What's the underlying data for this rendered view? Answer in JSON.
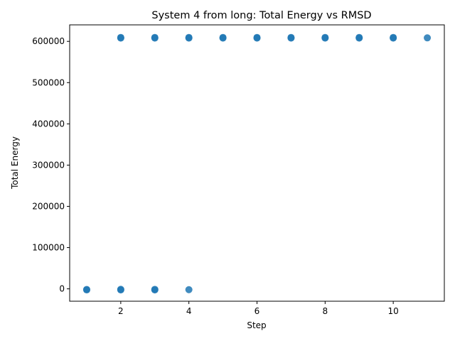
{
  "chart_data": {
    "type": "scatter",
    "title": "System 4 from long: Total Energy vs RMSD",
    "xlabel": "Step",
    "ylabel": "Total Energy",
    "xlim": [
      0.5,
      11.5
    ],
    "ylim": [
      -30000,
      640000
    ],
    "xticks": [
      2,
      4,
      6,
      8,
      10
    ],
    "yticks": [
      0,
      100000,
      200000,
      300000,
      400000,
      500000,
      600000
    ],
    "grid": false,
    "color": "#1f77b4",
    "points": [
      {
        "x": 1,
        "y": -1500
      },
      {
        "x": 1,
        "y": -2500
      },
      {
        "x": 2,
        "y": -1200
      },
      {
        "x": 2,
        "y": -2600
      },
      {
        "x": 3,
        "y": -1300
      },
      {
        "x": 3,
        "y": -2700
      },
      {
        "x": 4,
        "y": -2000
      },
      {
        "x": 2,
        "y": 608000
      },
      {
        "x": 2,
        "y": 609500
      },
      {
        "x": 3,
        "y": 608000
      },
      {
        "x": 3,
        "y": 609500
      },
      {
        "x": 4,
        "y": 608000
      },
      {
        "x": 4,
        "y": 609500
      },
      {
        "x": 5,
        "y": 608000
      },
      {
        "x": 5,
        "y": 609500
      },
      {
        "x": 6,
        "y": 608000
      },
      {
        "x": 6,
        "y": 609500
      },
      {
        "x": 7,
        "y": 608000
      },
      {
        "x": 7,
        "y": 609500
      },
      {
        "x": 8,
        "y": 608000
      },
      {
        "x": 8,
        "y": 609500
      },
      {
        "x": 9,
        "y": 608000
      },
      {
        "x": 9,
        "y": 609500
      },
      {
        "x": 10,
        "y": 608000
      },
      {
        "x": 10,
        "y": 609500
      },
      {
        "x": 11,
        "y": 608500
      }
    ]
  }
}
